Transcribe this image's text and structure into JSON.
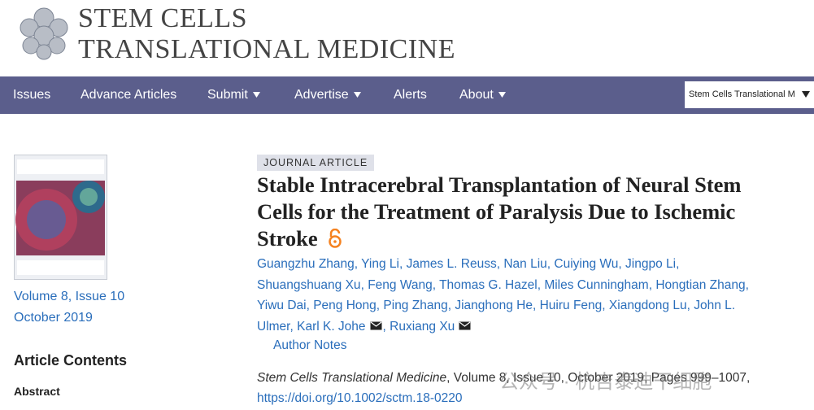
{
  "header": {
    "logo_line1": "STEM CELLS",
    "logo_line2": "TRANSLATIONAL MEDICINE"
  },
  "nav": {
    "items": [
      "Issues",
      "Advance Articles",
      "Submit",
      "Advertise",
      "Alerts",
      "About"
    ],
    "search_scope": "Stem Cells Translational M"
  },
  "sidebar": {
    "issue": "Volume 8, Issue 10",
    "date": "October 2019",
    "contents_heading": "Article Contents",
    "contents": [
      "Abstract"
    ]
  },
  "article": {
    "type": "JOURNAL ARTICLE",
    "title": "Stable Intracerebral Transplantation of Neural Stem Cells for the Treatment of Paralysis Due to Ischemic Stroke",
    "authors": [
      "Guangzhu Zhang",
      "Ying Li",
      "James L. Reuss",
      "Nan Liu",
      "Cuiying Wu",
      "Jingpo Li",
      "Shuangshuang Xu",
      "Feng Wang",
      "Thomas G. Hazel",
      "Miles Cunningham",
      "Hongtian Zhang",
      "Yiwu Dai",
      "Peng Hong",
      "Ping Zhang",
      "Jianghong He",
      "Huiru Feng",
      "Xiangdong Lu",
      "John L. Ulmer",
      "Karl K. Johe",
      "Ruxiang Xu"
    ],
    "author_notes": "Author Notes",
    "journal": "Stem Cells Translational Medicine",
    "citation": ", Volume 8, Issue 10, October 2019, Pages 999–1007,",
    "doi": "https://doi.org/10.1002/sctm.18-0220"
  },
  "watermark": "公众号 · 杭吉泰迪干细胞"
}
